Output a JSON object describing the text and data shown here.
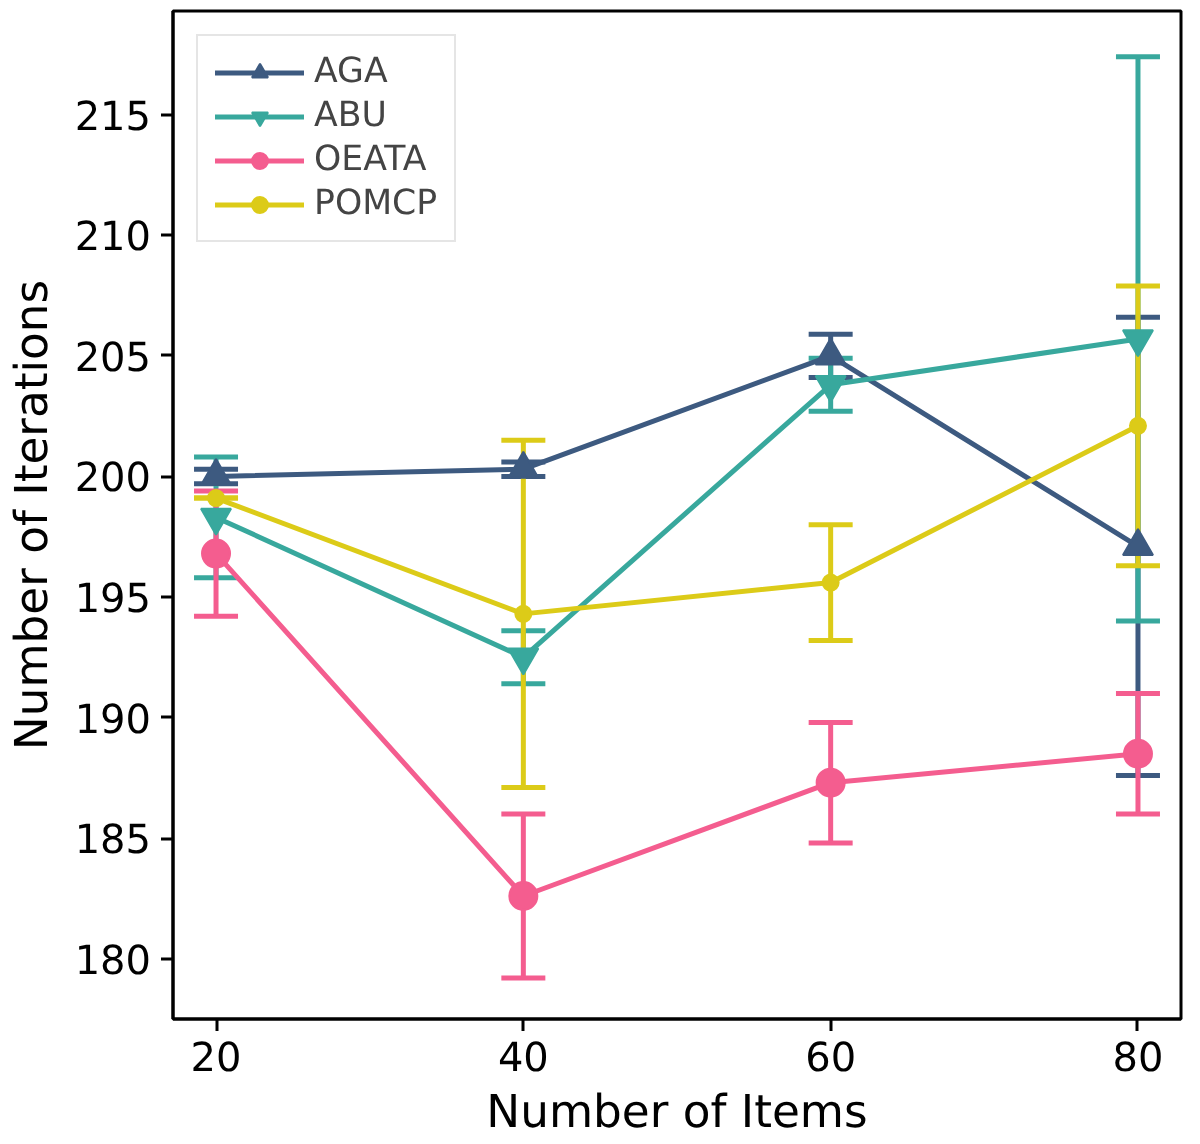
{
  "chart_data": {
    "type": "line",
    "xlabel": "Number of Items",
    "ylabel": "Number of Iterations",
    "x": [
      20,
      40,
      60,
      80
    ],
    "series": [
      {
        "name": "AGA",
        "color": "#3d5a80",
        "marker": "triangle",
        "values": [
          200.0,
          200.3,
          205.0,
          197.1
        ],
        "errors": [
          0.3,
          0.3,
          0.9,
          9.5
        ]
      },
      {
        "name": "ABU",
        "color": "#38a89d",
        "marker": "triangle_down",
        "values": [
          198.3,
          192.5,
          203.8,
          205.7
        ],
        "errors": [
          2.5,
          1.1,
          1.1,
          11.7
        ]
      },
      {
        "name": "OEATA",
        "color": "#f45d8f",
        "marker": "circle",
        "values": [
          196.8,
          182.6,
          187.3,
          188.5
        ],
        "errors": [
          2.6,
          3.4,
          2.5,
          2.5
        ]
      },
      {
        "name": "POMCP",
        "color": "#dccb18",
        "marker": "dot",
        "values": [
          199.1,
          194.3,
          195.6,
          202.1
        ],
        "errors": [
          null,
          7.2,
          2.4,
          5.8
        ]
      }
    ],
    "xlim": [
      17.2,
      82.8
    ],
    "ylim": [
      177.5,
      219.3
    ],
    "xticks": [
      20,
      40,
      60,
      80
    ],
    "yticks": [
      180,
      185,
      190,
      195,
      200,
      205,
      210,
      215
    ],
    "grid": false,
    "legend": "top left",
    "line_style": "solid"
  }
}
